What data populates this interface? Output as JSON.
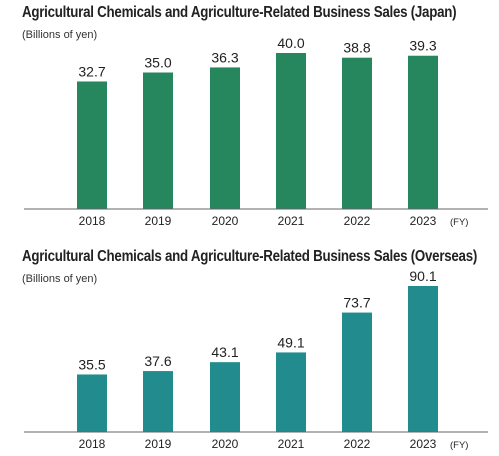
{
  "chart_data": [
    {
      "type": "bar",
      "title": "Agricultural Chemicals and Agriculture-Related Business Sales (Japan)",
      "unit_label": "(Billions of yen)",
      "categories": [
        "2018",
        "2019",
        "2020",
        "2021",
        "2022",
        "2023"
      ],
      "values": [
        32.7,
        35.0,
        36.3,
        40.0,
        38.8,
        39.3
      ],
      "data_labels": [
        "32.7",
        "35.0",
        "36.3",
        "40.0",
        "38.8",
        "39.3"
      ],
      "axis_suffix": "(FY)",
      "ylim": [
        0,
        40.0
      ],
      "color": "#26875f",
      "grid": false
    },
    {
      "type": "bar",
      "title": "Agricultural Chemicals and Agriculture-Related Business Sales (Overseas)",
      "unit_label": "(Billions of yen)",
      "categories": [
        "2018",
        "2019",
        "2020",
        "2021",
        "2022",
        "2023"
      ],
      "values": [
        35.5,
        37.6,
        43.1,
        49.1,
        73.7,
        90.1
      ],
      "data_labels": [
        "35.5",
        "37.6",
        "43.1",
        "49.1",
        "73.7",
        "90.1"
      ],
      "axis_suffix": "(FY)",
      "ylim": [
        0,
        90.1
      ],
      "color": "#228b8d",
      "grid": false
    }
  ]
}
